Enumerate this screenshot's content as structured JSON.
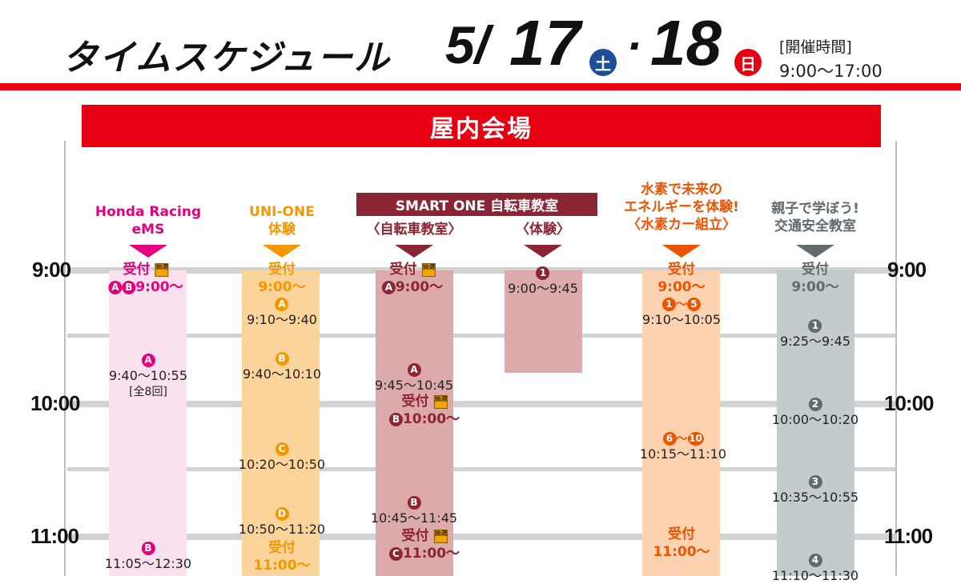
{
  "header": {
    "title": "タイムスケジュール",
    "date_month": "5/",
    "date_day1": "17",
    "day1_badge": "土",
    "date_sep": "·",
    "date_day2": "18",
    "day2_badge": "日",
    "hours_label": "[開催時間]",
    "hours_value": "9:00〜17:00"
  },
  "venue": "屋内会場",
  "times": {
    "t900": "9:00",
    "t1000": "10:00",
    "t1100": "11:00"
  },
  "colors": {
    "red": "#e60012",
    "navy": "#1f4e99",
    "pink": "#e4007f",
    "orange": "#f39800",
    "maroon": "#8b2534",
    "deeporange": "#ea5504",
    "gray": "#5f6b6d",
    "pink_bg": "#fbe0ee",
    "orange_bg": "#fbd49b",
    "maroon_bg": "#dcaaaa",
    "deeporange_bg": "#fdd2b0",
    "gray_bg": "#c4cbcc"
  },
  "columns": {
    "honda": {
      "title1": "Honda Racing",
      "title2": "eMS"
    },
    "unione": {
      "title1": "UNI-ONE",
      "title2": "体験"
    },
    "smart": {
      "title": "SMART ONE 自転車教室",
      "sub1": "〈自転車教室〉",
      "sub2": "〈体験〉"
    },
    "hydrogen": {
      "title1": "水素で未来の",
      "title2": "エネルギーを体験!",
      "title3": "〈水素カー組立〉"
    },
    "traffic": {
      "title1": "親子で学ぼう!",
      "title2": "交通安全教室"
    }
  },
  "labels": {
    "reception": "受付",
    "lottery": "抽選"
  },
  "honda": {
    "rec1_circles": "AB",
    "rec1_time": "9:00〜",
    "e1_circle": "A",
    "e1_time": "9:40〜10:55",
    "e1_note": "[全8回]",
    "e2_circle": "B",
    "e2_time": "11:05〜12:30"
  },
  "unione": {
    "rec1_time": "9:00〜",
    "e1_circle": "A",
    "e1_time": "9:10〜9:40",
    "e2_circle": "B",
    "e2_time": "9:40〜10:10",
    "e3_circle": "C",
    "e3_time": "10:20〜10:50",
    "e4_circle": "D",
    "e4_time": "10:50〜11:20",
    "rec2_time": "11:00〜"
  },
  "bike": {
    "rec1_circle": "A",
    "rec1_time": "9:00〜",
    "e1_circle": "A",
    "e1_time": "9:45〜10:45",
    "rec2_circle": "B",
    "rec2_time": "10:00〜",
    "e2_circle": "B",
    "e2_time": "10:45〜11:45",
    "rec3_circle": "C",
    "rec3_time": "11:00〜"
  },
  "experience": {
    "e1_circle": "1",
    "e1_time": "9:00〜9:45"
  },
  "hydrogen": {
    "rec1_time": "9:00〜",
    "rec1_range_start": "1",
    "rec1_range_sep": "〜",
    "rec1_range_end": "5",
    "e1_time": "9:10〜10:05",
    "e2_range_start": "6",
    "e2_range_sep": "〜",
    "e2_range_end": "10",
    "e2_time": "10:15〜11:10",
    "rec2_time": "11:00〜"
  },
  "traffic": {
    "rec1_time": "9:00〜",
    "e1_circle": "1",
    "e1_time": "9:25〜9:45",
    "e2_circle": "2",
    "e2_time": "10:00〜10:20",
    "e3_circle": "3",
    "e3_time": "10:35〜10:55",
    "e4_circle": "4",
    "e4_time": "11:10〜11:30"
  }
}
